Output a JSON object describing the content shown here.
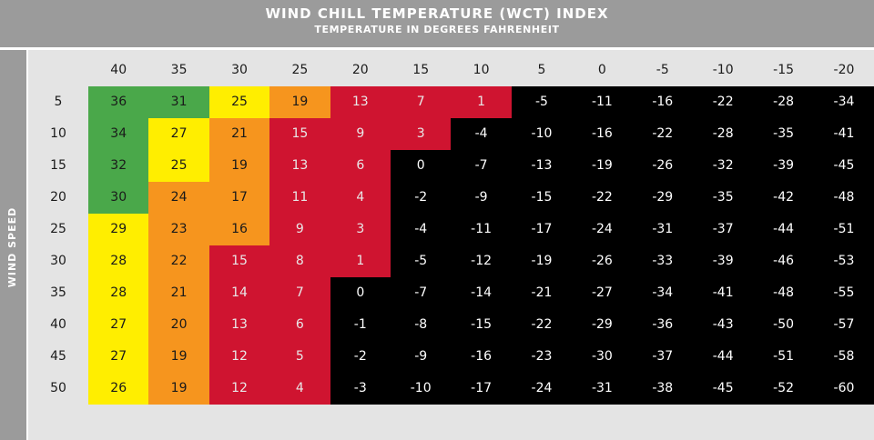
{
  "header": {
    "title": "WIND CHILL TEMPERATURE (WCT) INDEX",
    "subtitle": "TEMPERATURE IN DEGREES FAHRENHEIT"
  },
  "axis": {
    "row_label": "WIND SPEED"
  },
  "colors": {
    "header_gray": "#9b9b9b",
    "table_bg": "#e4e4e4",
    "green": "#4aa84a",
    "yellow": "#ffee00",
    "orange": "#f6951e",
    "red": "#cf1430",
    "black": "#000000"
  },
  "table": {
    "temperatures": [
      "40",
      "35",
      "30",
      "25",
      "20",
      "15",
      "10",
      "5",
      "0",
      "-5",
      "-10",
      "-15",
      "-20"
    ],
    "wind_speeds": [
      "5",
      "10",
      "15",
      "20",
      "25",
      "30",
      "35",
      "40",
      "45",
      "50"
    ],
    "values": [
      [
        "36",
        "31",
        "25",
        "19",
        "13",
        "7",
        "1",
        "-5",
        "-11",
        "-16",
        "-22",
        "-28",
        "-34"
      ],
      [
        "34",
        "27",
        "21",
        "15",
        "9",
        "3",
        "-4",
        "-10",
        "-16",
        "-22",
        "-28",
        "-35",
        "-41"
      ],
      [
        "32",
        "25",
        "19",
        "13",
        "6",
        "0",
        "-7",
        "-13",
        "-19",
        "-26",
        "-32",
        "-39",
        "-45"
      ],
      [
        "30",
        "24",
        "17",
        "11",
        "4",
        "-2",
        "-9",
        "-15",
        "-22",
        "-29",
        "-35",
        "-42",
        "-48"
      ],
      [
        "29",
        "23",
        "16",
        "9",
        "3",
        "-4",
        "-11",
        "-17",
        "-24",
        "-31",
        "-37",
        "-44",
        "-51"
      ],
      [
        "28",
        "22",
        "15",
        "8",
        "1",
        "-5",
        "-12",
        "-19",
        "-26",
        "-33",
        "-39",
        "-46",
        "-53"
      ],
      [
        "28",
        "21",
        "14",
        "7",
        "0",
        "-7",
        "-14",
        "-21",
        "-27",
        "-34",
        "-41",
        "-48",
        "-55"
      ],
      [
        "27",
        "20",
        "13",
        "6",
        "-1",
        "-8",
        "-15",
        "-22",
        "-29",
        "-36",
        "-43",
        "-50",
        "-57"
      ],
      [
        "27",
        "19",
        "12",
        "5",
        "-2",
        "-9",
        "-16",
        "-23",
        "-30",
        "-37",
        "-44",
        "-51",
        "-58"
      ],
      [
        "26",
        "19",
        "12",
        "4",
        "-3",
        "-10",
        "-17",
        "-24",
        "-31",
        "-38",
        "-45",
        "-52",
        "-60"
      ]
    ],
    "zones": [
      [
        "green",
        "green",
        "yellow",
        "orange",
        "red",
        "red",
        "red",
        "black",
        "black",
        "black",
        "black",
        "black",
        "black"
      ],
      [
        "green",
        "yellow",
        "orange",
        "red",
        "red",
        "red",
        "black",
        "black",
        "black",
        "black",
        "black",
        "black",
        "black"
      ],
      [
        "green",
        "yellow",
        "orange",
        "red",
        "red",
        "black",
        "black",
        "black",
        "black",
        "black",
        "black",
        "black",
        "black"
      ],
      [
        "green",
        "orange",
        "orange",
        "red",
        "red",
        "black",
        "black",
        "black",
        "black",
        "black",
        "black",
        "black",
        "black"
      ],
      [
        "yellow",
        "orange",
        "orange",
        "red",
        "red",
        "black",
        "black",
        "black",
        "black",
        "black",
        "black",
        "black",
        "black"
      ],
      [
        "yellow",
        "orange",
        "red",
        "red",
        "red",
        "black",
        "black",
        "black",
        "black",
        "black",
        "black",
        "black",
        "black"
      ],
      [
        "yellow",
        "orange",
        "red",
        "red",
        "black",
        "black",
        "black",
        "black",
        "black",
        "black",
        "black",
        "black",
        "black"
      ],
      [
        "yellow",
        "orange",
        "red",
        "red",
        "black",
        "black",
        "black",
        "black",
        "black",
        "black",
        "black",
        "black",
        "black"
      ],
      [
        "yellow",
        "orange",
        "red",
        "red",
        "black",
        "black",
        "black",
        "black",
        "black",
        "black",
        "black",
        "black",
        "black"
      ],
      [
        "yellow",
        "orange",
        "red",
        "red",
        "black",
        "black",
        "black",
        "black",
        "black",
        "black",
        "black",
        "black",
        "black"
      ]
    ]
  }
}
